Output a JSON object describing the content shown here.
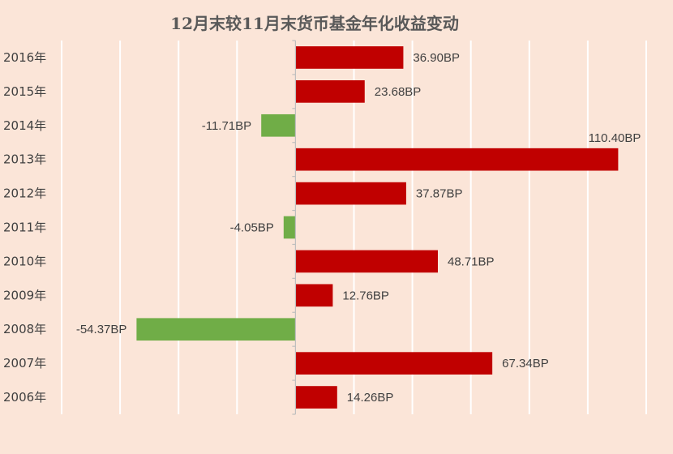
{
  "chart_data": {
    "type": "bar",
    "orientation": "horizontal",
    "title": "12月末较11月末货币基金年化收益变动",
    "categories": [
      "2016年",
      "2015年",
      "2014年",
      "2013年",
      "2012年",
      "2011年",
      "2010年",
      "2009年",
      "2008年",
      "2007年",
      "2006年"
    ],
    "values": [
      36.9,
      23.68,
      -11.71,
      110.4,
      37.87,
      -4.05,
      48.71,
      12.76,
      -54.37,
      67.34,
      14.26
    ],
    "data_labels": [
      "36.90BP",
      "23.68BP",
      "-11.71BP",
      "110.40BP",
      "37.87BP",
      "-4.05BP",
      "48.71BP",
      "12.76BP",
      "-54.37BP",
      "67.34BP",
      "14.26BP"
    ],
    "unit": "BP",
    "xlim": [
      -80,
      120
    ],
    "grid": "vertical",
    "legend": "none",
    "colors": {
      "positive": "#c00000",
      "negative": "#70ad47",
      "background": "#fbe5d8",
      "gridline": "#ffffff",
      "axis": "#bfbfbf"
    }
  }
}
